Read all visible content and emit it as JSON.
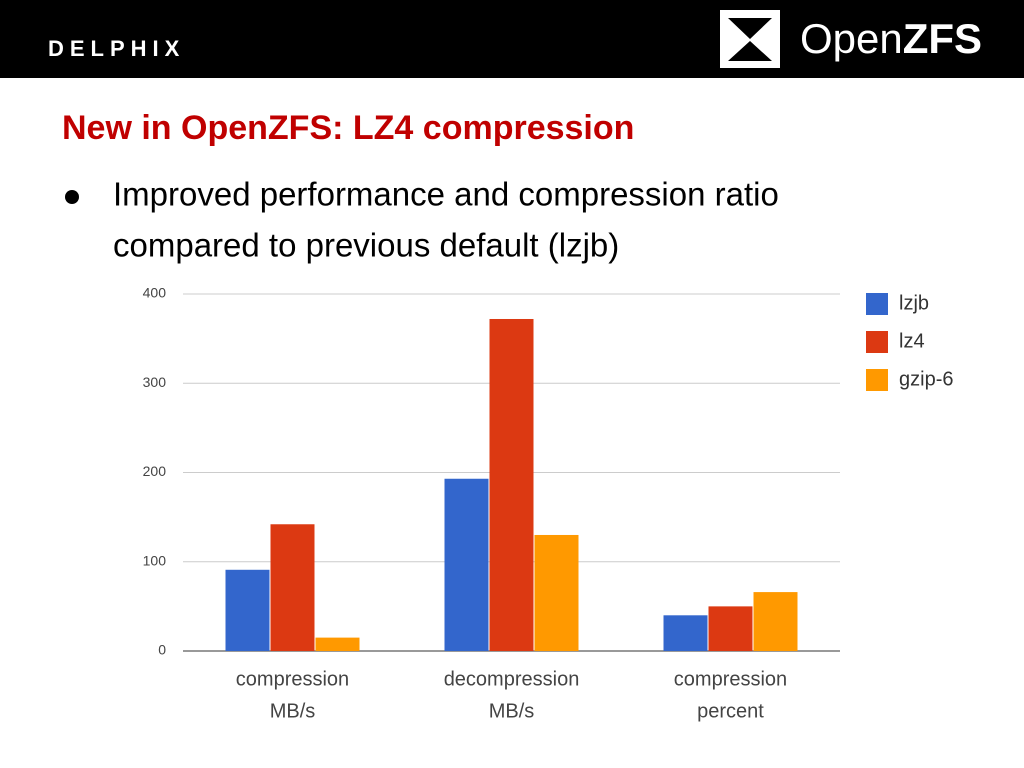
{
  "header": {
    "left_logo": "DELPHIX",
    "right_logo_open": "Open",
    "right_logo_zfs": "ZFS"
  },
  "slide": {
    "title": "New in OpenZFS: LZ4 compression",
    "bullet_lines": [
      "Improved performance and compression ratio",
      "compared to previous default (lzjb)"
    ]
  },
  "chart_data": {
    "type": "bar",
    "categories": [
      [
        "compression",
        "MB/s"
      ],
      [
        "decompression",
        "MB/s"
      ],
      [
        "compression",
        "percent"
      ]
    ],
    "series": [
      {
        "name": "lzjb",
        "color": "#3366cc",
        "values": [
          91,
          193,
          40
        ]
      },
      {
        "name": "lz4",
        "color": "#dc3912",
        "values": [
          142,
          372,
          50
        ]
      },
      {
        "name": "gzip-6",
        "color": "#ff9900",
        "values": [
          15,
          130,
          66
        ]
      }
    ],
    "ylim": [
      0,
      400
    ],
    "yticks": [
      0,
      100,
      200,
      300,
      400
    ],
    "grid": true,
    "legend": "right"
  }
}
